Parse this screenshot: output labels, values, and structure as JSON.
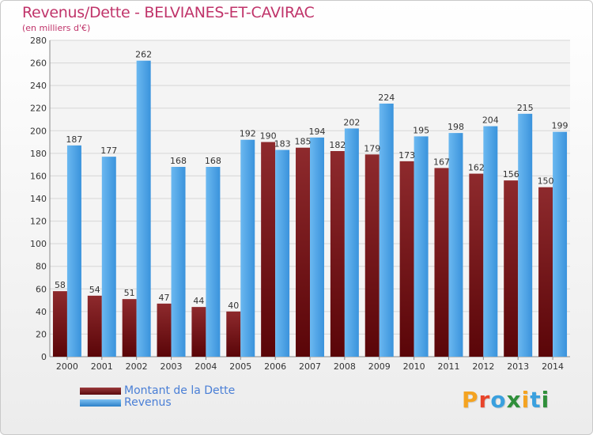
{
  "chart_data": {
    "type": "bar",
    "title": "Revenus/Dette - BELVIANES-ET-CAVIRAC",
    "subtitle": "(en milliers d'€)",
    "categories": [
      "2000",
      "2001",
      "2002",
      "2003",
      "2004",
      "2005",
      "2006",
      "2007",
      "2008",
      "2009",
      "2010",
      "2011",
      "2012",
      "2013",
      "2014"
    ],
    "series": [
      {
        "name": "Montant de la Dette",
        "color": "#7a1518",
        "values": [
          58,
          54,
          51,
          47,
          44,
          40,
          190,
          185,
          182,
          179,
          173,
          167,
          162,
          156,
          150
        ]
      },
      {
        "name": "Revenus",
        "color": "#4aa3e6",
        "values": [
          187,
          177,
          262,
          168,
          168,
          192,
          183,
          194,
          202,
          224,
          195,
          198,
          204,
          215,
          199
        ]
      }
    ],
    "ylim": [
      0,
      280
    ],
    "yticks": [
      0,
      20,
      40,
      60,
      80,
      100,
      120,
      140,
      160,
      180,
      200,
      220,
      240,
      260,
      280
    ],
    "grid": true,
    "legend_position": "bottom-left"
  },
  "logo": {
    "text": "Proxiti"
  }
}
